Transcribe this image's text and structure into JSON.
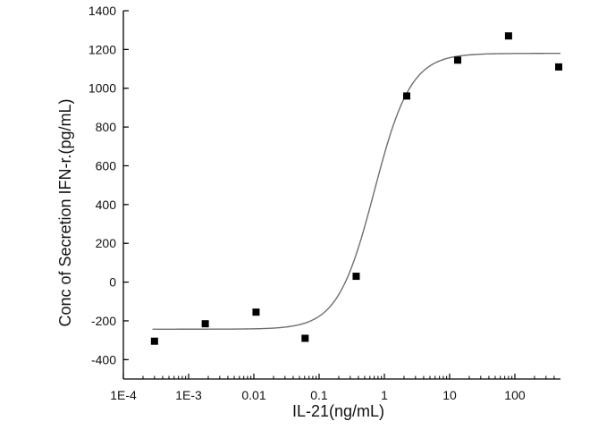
{
  "chart_data": {
    "type": "scatter",
    "title": "",
    "xlabel": "IL-21(ng/mL)",
    "ylabel": "Conc of Secretion IFN-r.(pg/mL)",
    "xscale": "log",
    "xlim": [
      0.0001,
      500
    ],
    "ylim": [
      -500,
      1400
    ],
    "x_ticks": [
      {
        "value": 0.0001,
        "label": "1E-4"
      },
      {
        "value": 0.001,
        "label": "1E-3"
      },
      {
        "value": 0.01,
        "label": "0.01"
      },
      {
        "value": 0.1,
        "label": "0.1"
      },
      {
        "value": 1,
        "label": "1"
      },
      {
        "value": 10,
        "label": "10"
      },
      {
        "value": 100,
        "label": "100"
      }
    ],
    "y_ticks": [
      {
        "value": 1400,
        "label": "1400"
      },
      {
        "value": 1200,
        "label": "1200"
      },
      {
        "value": 1000,
        "label": "1000"
      },
      {
        "value": 800,
        "label": "800"
      },
      {
        "value": 600,
        "label": "600"
      },
      {
        "value": 400,
        "label": "400"
      },
      {
        "value": 200,
        "label": "200"
      },
      {
        "value": 0,
        "label": "0"
      },
      {
        "value": -200,
        "label": "-200"
      },
      {
        "value": -400,
        "label": "-400"
      }
    ],
    "grid": false,
    "legend": "none",
    "series": [
      {
        "values": [
          {
            "x": 0.0003,
            "y": -305
          },
          {
            "x": 0.0018,
            "y": -215
          },
          {
            "x": 0.0108,
            "y": -155
          },
          {
            "x": 0.061,
            "y": -290
          },
          {
            "x": 0.37,
            "y": 30
          },
          {
            "x": 2.2,
            "y": 960
          },
          {
            "x": 13.3,
            "y": 1145
          },
          {
            "x": 80,
            "y": 1270
          },
          {
            "x": 470,
            "y": 1110
          }
        ],
        "marker": "square",
        "color": "#000000"
      }
    ],
    "fit_curve": {
      "model": "4-parameter logistic",
      "bottom": -243,
      "top": 1180,
      "ec50": 0.7,
      "hill_slope": 1.55,
      "color": "#6f6f6f"
    }
  }
}
